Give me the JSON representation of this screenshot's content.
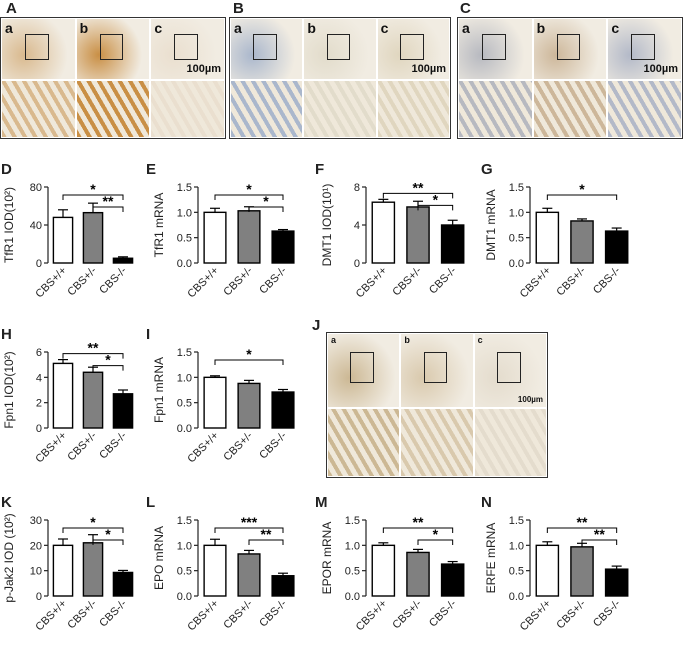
{
  "panel_labels": [
    "A",
    "B",
    "C",
    "D",
    "E",
    "F",
    "G",
    "H",
    "I",
    "J",
    "K",
    "L",
    "M",
    "N"
  ],
  "micrographs": [
    {
      "label": "A",
      "subpanels": [
        "a",
        "b",
        "c"
      ],
      "scale_bar": "100µm",
      "colors": [
        "#d9b98e",
        "#c98f45",
        "#eadfcf"
      ]
    },
    {
      "label": "B",
      "subpanels": [
        "a",
        "b",
        "c"
      ],
      "scale_bar": "100µm",
      "colors": [
        "#aab7cc",
        "#e2dccb",
        "#e0d6bf"
      ]
    },
    {
      "label": "C",
      "subpanels": [
        "a",
        "b",
        "c"
      ],
      "scale_bar": "100µm",
      "colors": [
        "#b7b9c0",
        "#cdb79a",
        "#b3b9c8"
      ]
    },
    {
      "label": "J",
      "subpanels": [
        "a",
        "b",
        "c"
      ],
      "scale_bar": "100µm",
      "colors": [
        "#ccb894",
        "#d9c9ad",
        "#e4dccd"
      ]
    }
  ],
  "chart_data": [
    {
      "label": "D",
      "type": "bar",
      "ylabel": "TfR1  IOD(10²)",
      "categories": [
        "CBS+/+",
        "CBS+/-",
        "CBS-/-"
      ],
      "values": [
        48,
        53,
        5
      ],
      "errors": [
        8,
        10,
        1.5
      ],
      "ylim": [
        0,
        80
      ],
      "yticks": [
        "0",
        "40",
        "80"
      ],
      "fills": [
        "#ffffff",
        "#808080",
        "#000000"
      ],
      "significance": [
        {
          "from": 0,
          "to": 2,
          "text": "*"
        },
        {
          "from": 1,
          "to": 2,
          "text": "**"
        }
      ]
    },
    {
      "label": "E",
      "type": "bar",
      "ylabel": "TfR1 mRNA",
      "categories": [
        "CBS+/+",
        "CBS+/-",
        "CBS-/-"
      ],
      "values": [
        1.0,
        1.03,
        0.63
      ],
      "errors": [
        0.08,
        0.08,
        0.03
      ],
      "ylim": [
        0,
        1.5
      ],
      "yticks": [
        "0.0",
        "0.5",
        "1.0",
        "1.5"
      ],
      "fills": [
        "#ffffff",
        "#808080",
        "#000000"
      ],
      "significance": [
        {
          "from": 0,
          "to": 2,
          "text": "*"
        },
        {
          "from": 1,
          "to": 2,
          "text": "*"
        }
      ]
    },
    {
      "label": "F",
      "type": "bar",
      "ylabel": "DMT1  IOD(10¹)",
      "categories": [
        "CBS+/+",
        "CBS+/-",
        "CBS-/-"
      ],
      "values": [
        6.4,
        5.9,
        4.0
      ],
      "errors": [
        0.3,
        0.6,
        0.5
      ],
      "ylim": [
        0,
        8
      ],
      "yticks": [
        "0",
        "4",
        "8"
      ],
      "fills": [
        "#ffffff",
        "#808080",
        "#000000"
      ],
      "significance": [
        {
          "from": 0,
          "to": 2,
          "text": "**"
        },
        {
          "from": 1,
          "to": 2,
          "text": "*"
        }
      ]
    },
    {
      "label": "G",
      "type": "bar",
      "ylabel": "DMT1 mRNA",
      "categories": [
        "CBS+/+",
        "CBS+/-",
        "CBS-/-"
      ],
      "values": [
        1.0,
        0.83,
        0.63
      ],
      "errors": [
        0.08,
        0.04,
        0.06
      ],
      "ylim": [
        0,
        1.5
      ],
      "yticks": [
        "0.0",
        "0.5",
        "1.0",
        "1.5"
      ],
      "fills": [
        "#ffffff",
        "#808080",
        "#000000"
      ],
      "significance": [
        {
          "from": 0,
          "to": 2,
          "text": "*"
        }
      ]
    },
    {
      "label": "H",
      "type": "bar",
      "ylabel": "Fpn1  IOD(10²)",
      "categories": [
        "CBS+/+",
        "CBS+/-",
        "CBS-/-"
      ],
      "values": [
        5.1,
        4.4,
        2.7
      ],
      "errors": [
        0.3,
        0.4,
        0.3
      ],
      "ylim": [
        0,
        6
      ],
      "yticks": [
        "0",
        "2",
        "4",
        "6"
      ],
      "fills": [
        "#ffffff",
        "#808080",
        "#000000"
      ],
      "significance": [
        {
          "from": 0,
          "to": 2,
          "text": "**"
        },
        {
          "from": 1,
          "to": 2,
          "text": "*"
        }
      ]
    },
    {
      "label": "I",
      "type": "bar",
      "ylabel": "Fpn1 mRNA",
      "categories": [
        "CBS+/+",
        "CBS+/-",
        "CBS-/-"
      ],
      "values": [
        1.0,
        0.88,
        0.71
      ],
      "errors": [
        0.03,
        0.06,
        0.05
      ],
      "ylim": [
        0,
        1.5
      ],
      "yticks": [
        "0.0",
        "0.5",
        "1.0",
        "1.5"
      ],
      "fills": [
        "#ffffff",
        "#808080",
        "#000000"
      ],
      "significance": [
        {
          "from": 0,
          "to": 2,
          "text": "*"
        }
      ]
    },
    {
      "label": "K",
      "type": "bar",
      "ylabel": "p-Jak2  IOD (10²)",
      "categories": [
        "CBS+/+",
        "CBS+/-",
        "CBS-/-"
      ],
      "values": [
        20,
        21,
        9.3
      ],
      "errors": [
        2.5,
        3.2,
        0.8
      ],
      "ylim": [
        0,
        30
      ],
      "yticks": [
        "0",
        "10",
        "20",
        "30"
      ],
      "fills": [
        "#ffffff",
        "#808080",
        "#000000"
      ],
      "significance": [
        {
          "from": 0,
          "to": 2,
          "text": "*"
        },
        {
          "from": 1,
          "to": 2,
          "text": "*"
        }
      ]
    },
    {
      "label": "L",
      "type": "bar",
      "ylabel": "EPO mRNA",
      "categories": [
        "CBS+/+",
        "CBS+/-",
        "CBS-/-"
      ],
      "values": [
        1.0,
        0.83,
        0.4
      ],
      "errors": [
        0.12,
        0.07,
        0.05
      ],
      "ylim": [
        0,
        1.5
      ],
      "yticks": [
        "0.0",
        "0.5",
        "1.0",
        "1.5"
      ],
      "fills": [
        "#ffffff",
        "#808080",
        "#000000"
      ],
      "significance": [
        {
          "from": 0,
          "to": 2,
          "text": "***"
        },
        {
          "from": 1,
          "to": 2,
          "text": "**"
        }
      ]
    },
    {
      "label": "M",
      "type": "bar",
      "ylabel": "EPOR  mRNA",
      "categories": [
        "CBS+/+",
        "CBS+/-",
        "CBS-/-"
      ],
      "values": [
        1.0,
        0.86,
        0.63
      ],
      "errors": [
        0.05,
        0.06,
        0.05
      ],
      "ylim": [
        0,
        1.5
      ],
      "yticks": [
        "0.0",
        "0.5",
        "1.0",
        "1.5"
      ],
      "fills": [
        "#ffffff",
        "#808080",
        "#000000"
      ],
      "significance": [
        {
          "from": 0,
          "to": 2,
          "text": "**"
        },
        {
          "from": 1,
          "to": 2,
          "text": "*"
        }
      ]
    },
    {
      "label": "N",
      "type": "bar",
      "ylabel": "ERFE mRNA",
      "categories": [
        "CBS+/+",
        "CBS+/-",
        "CBS-/-"
      ],
      "values": [
        1.0,
        0.97,
        0.53
      ],
      "errors": [
        0.07,
        0.07,
        0.06
      ],
      "ylim": [
        0,
        1.5
      ],
      "yticks": [
        "0.0",
        "0.5",
        "1.0",
        "1.5"
      ],
      "fills": [
        "#ffffff",
        "#808080",
        "#000000"
      ],
      "significance": [
        {
          "from": 0,
          "to": 2,
          "text": "**"
        },
        {
          "from": 1,
          "to": 2,
          "text": "**"
        }
      ]
    }
  ]
}
